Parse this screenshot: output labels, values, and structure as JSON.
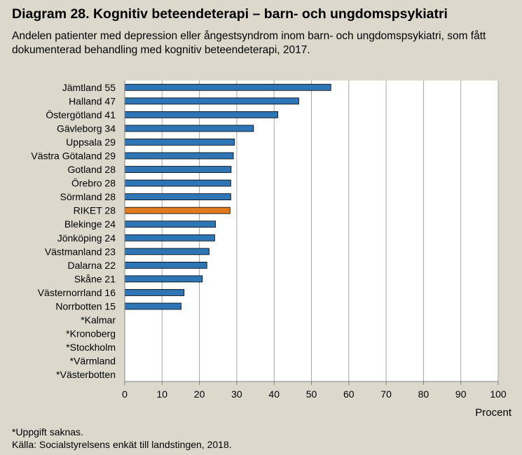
{
  "title": "Diagram 28. Kognitiv beteendeterapi – barn- och ungdomspsykiatri",
  "subtitle": "Andelen patienter med depression eller ångestsyndrom inom  barn- och ungdomspsykiatri, som fått dokumenterad behandling med kognitiv beteendeterapi, 2017.",
  "footnotes": {
    "missing": "*Uppgift saknas.",
    "source": "Källa: Socialstyrelsens enkät till landstingen, 2018."
  },
  "colors": {
    "bar": "#2e75b6",
    "highlight": "#e07b1f",
    "background": "#dcd8cc"
  },
  "chart_data": {
    "type": "bar",
    "orientation": "horizontal",
    "xlabel": "Procent",
    "xlim": [
      0,
      100
    ],
    "xticks": [
      0,
      10,
      20,
      30,
      40,
      50,
      60,
      70,
      80,
      90,
      100
    ],
    "grid": true,
    "categories": [
      "Jämtland 55",
      "Halland 47",
      "Östergötland 41",
      "Gävleborg 34",
      "Uppsala 29",
      "Västra Götaland 29",
      "Gotland 28",
      "Örebro 28",
      "Sörmland 28",
      "RIKET 28",
      "Blekinge 24",
      "Jönköping 24",
      "Västmanland 23",
      "Dalarna 22",
      "Skåne 21",
      "Västernorrland 16",
      "Norrbotten 15",
      "*Kalmar",
      "*Kronoberg",
      "*Stockholm",
      "*Värmland",
      "*Västerbotten"
    ],
    "values": [
      55.2,
      46.6,
      41.0,
      34.5,
      29.4,
      29.1,
      28.5,
      28.4,
      28.4,
      28.2,
      24.3,
      24.1,
      22.6,
      22.0,
      20.8,
      15.9,
      15.1,
      null,
      null,
      null,
      null,
      null
    ],
    "highlight_category": "RIKET 28"
  }
}
